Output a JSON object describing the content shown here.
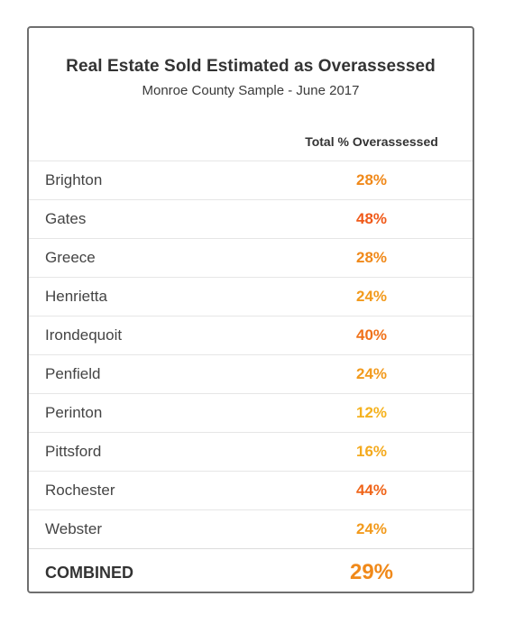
{
  "chart_data": {
    "type": "table",
    "title": "Real Estate Sold Estimated as Overassessed",
    "subtitle": "Monroe County Sample - June 2017",
    "column_header": "Total % Overassessed",
    "rows": [
      {
        "name": "Brighton",
        "value": 28,
        "label": "28%",
        "color": "#f0891a"
      },
      {
        "name": "Gates",
        "value": 48,
        "label": "48%",
        "color": "#f05a1a"
      },
      {
        "name": "Greece",
        "value": 28,
        "label": "28%",
        "color": "#f0891a"
      },
      {
        "name": "Henrietta",
        "value": 24,
        "label": "24%",
        "color": "#f29a1c"
      },
      {
        "name": "Irondequoit",
        "value": 40,
        "label": "40%",
        "color": "#f0721a"
      },
      {
        "name": "Penfield",
        "value": 24,
        "label": "24%",
        "color": "#f29a1c"
      },
      {
        "name": "Perinton",
        "value": 12,
        "label": "12%",
        "color": "#f5b21e"
      },
      {
        "name": "Pittsford",
        "value": 16,
        "label": "16%",
        "color": "#f4aa1e"
      },
      {
        "name": "Rochester",
        "value": 44,
        "label": "44%",
        "color": "#f0651a"
      },
      {
        "name": "Webster",
        "value": 24,
        "label": "24%",
        "color": "#f29a1c"
      }
    ],
    "total": {
      "name": "COMBINED",
      "value": 29,
      "label": "29%",
      "color": "#f0891a"
    }
  }
}
